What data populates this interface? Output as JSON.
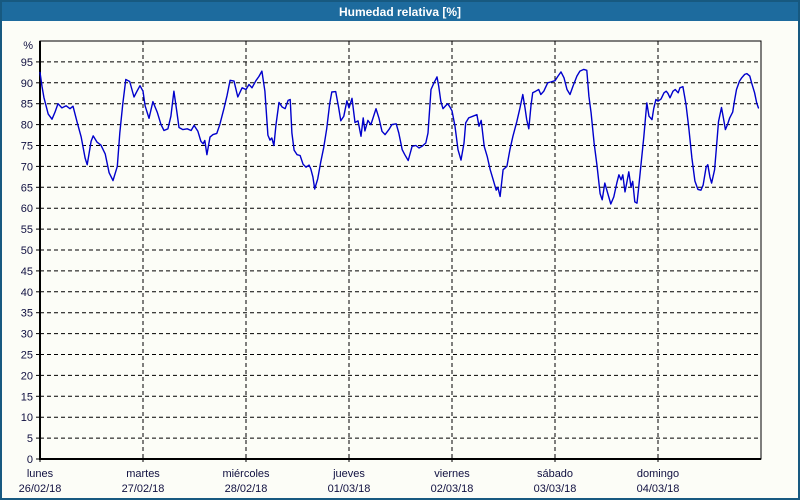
{
  "header": {
    "title": "Humedad relativa [%]"
  },
  "colors": {
    "titlebar_bg": "#1d6b9e",
    "title_text": "#ffffff",
    "window_border": "#175980",
    "background": "#fcfdf7",
    "axis": "#000000",
    "grid": "#000000",
    "label": "#101040",
    "line": "#0000cc"
  },
  "chart_data": {
    "type": "line",
    "title": "Humedad relativa [%]",
    "xlabel": "",
    "ylabel": "Humedad relativa",
    "y_unit_label": "%",
    "ylim": [
      0,
      100
    ],
    "xlim_hours": [
      0,
      168
    ],
    "grid": "horizontal dashed every 5%, vertical dashed at day boundaries",
    "legend": "none",
    "yticks": [
      0,
      5,
      10,
      15,
      20,
      25,
      30,
      35,
      40,
      45,
      50,
      55,
      60,
      65,
      70,
      75,
      80,
      85,
      90,
      95
    ],
    "ytick_labels": [
      "0",
      "5",
      "10",
      "15",
      "20",
      "25",
      "30",
      "35",
      "40",
      "45",
      "50",
      "55",
      "60",
      "65",
      "70",
      "75",
      "80",
      "85",
      "90",
      "95"
    ],
    "days": [
      {
        "name": "lunes",
        "date": "26/02/18"
      },
      {
        "name": "martes",
        "date": "27/02/18"
      },
      {
        "name": "miércoles",
        "date": "28/02/18"
      },
      {
        "name": "jueves",
        "date": "01/03/18"
      },
      {
        "name": "viernes",
        "date": "02/03/18"
      },
      {
        "name": "sábado",
        "date": "03/03/18"
      },
      {
        "name": "domingo",
        "date": "04/03/18"
      }
    ],
    "hours_per_day": 24,
    "series": [
      {
        "name": "Humedad relativa",
        "unit": "%",
        "points": [
          [
            0,
            92.5
          ],
          [
            0.5,
            89
          ],
          [
            0.9,
            86.5
          ],
          [
            1.9,
            82.5
          ],
          [
            2.8,
            81.3
          ],
          [
            3.5,
            83
          ],
          [
            4.2,
            85
          ],
          [
            5.1,
            84
          ],
          [
            6.1,
            84.5
          ],
          [
            7,
            83.8
          ],
          [
            7.7,
            84.4
          ],
          [
            8.6,
            80.8
          ],
          [
            9.6,
            77
          ],
          [
            10.5,
            72
          ],
          [
            11,
            70.4
          ],
          [
            11.9,
            76
          ],
          [
            12.4,
            77.3
          ],
          [
            13.3,
            75.8
          ],
          [
            14.2,
            75.1
          ],
          [
            15.2,
            73
          ],
          [
            16.1,
            68.5
          ],
          [
            17,
            66.6
          ],
          [
            18,
            70
          ],
          [
            18.6,
            78
          ],
          [
            19.3,
            85
          ],
          [
            20,
            90.8
          ],
          [
            20.9,
            90.3
          ],
          [
            21.9,
            86.6
          ],
          [
            22.6,
            88
          ],
          [
            23.3,
            89.3
          ],
          [
            24,
            88
          ],
          [
            24.5,
            84.5
          ],
          [
            25.4,
            81.5
          ],
          [
            26.3,
            85.5
          ],
          [
            27.3,
            83
          ],
          [
            28.2,
            80
          ],
          [
            28.9,
            78.6
          ],
          [
            29.8,
            79
          ],
          [
            30.5,
            82
          ],
          [
            31.2,
            88
          ],
          [
            31.9,
            83
          ],
          [
            32.4,
            79.3
          ],
          [
            33.3,
            78.8
          ],
          [
            34.3,
            79
          ],
          [
            35.2,
            78.6
          ],
          [
            35.9,
            79.8
          ],
          [
            36.8,
            78.4
          ],
          [
            37.5,
            76
          ],
          [
            38,
            75.4
          ],
          [
            38.4,
            76.2
          ],
          [
            38.9,
            72.8
          ],
          [
            39.6,
            77
          ],
          [
            40.3,
            77.6
          ],
          [
            41.2,
            77.9
          ],
          [
            41.9,
            80
          ],
          [
            42.9,
            84
          ],
          [
            43.6,
            87
          ],
          [
            44.3,
            90.6
          ],
          [
            45.2,
            90.4
          ],
          [
            46.1,
            86.6
          ],
          [
            47.1,
            88.8
          ],
          [
            48,
            88.4
          ],
          [
            48.7,
            89.6
          ],
          [
            49.4,
            88.8
          ],
          [
            50.3,
            90.5
          ],
          [
            51,
            91.5
          ],
          [
            51.7,
            92.8
          ],
          [
            52.4,
            88
          ],
          [
            53.1,
            77.5
          ],
          [
            53.6,
            76.3
          ],
          [
            54,
            76.8
          ],
          [
            54.5,
            75
          ],
          [
            55,
            80
          ],
          [
            55.7,
            85.3
          ],
          [
            56.4,
            84.2
          ],
          [
            57.1,
            83.8
          ],
          [
            57.8,
            85.8
          ],
          [
            58.3,
            86
          ],
          [
            58.7,
            78
          ],
          [
            59.2,
            73.9
          ],
          [
            59.9,
            72.8
          ],
          [
            60.6,
            72.6
          ],
          [
            61.3,
            70.5
          ],
          [
            62,
            69.8
          ],
          [
            62.7,
            70.3
          ],
          [
            63.1,
            69.4
          ],
          [
            63.6,
            67.5
          ],
          [
            64,
            64.6
          ],
          [
            64.7,
            67
          ],
          [
            65.4,
            71
          ],
          [
            66.1,
            74.5
          ],
          [
            66.8,
            79
          ],
          [
            67.5,
            85
          ],
          [
            68,
            87.8
          ],
          [
            68.9,
            87.9
          ],
          [
            69.6,
            84
          ],
          [
            70.1,
            80.9
          ],
          [
            70.8,
            82
          ],
          [
            71.5,
            85.7
          ],
          [
            72,
            84
          ],
          [
            72.7,
            86.3
          ],
          [
            73.4,
            80.5
          ],
          [
            74.1,
            80.9
          ],
          [
            74.8,
            77.2
          ],
          [
            75.3,
            81.6
          ],
          [
            75.7,
            78.5
          ],
          [
            76.4,
            81
          ],
          [
            77.1,
            80
          ],
          [
            78.3,
            83.8
          ],
          [
            79,
            81.5
          ],
          [
            79.7,
            78.4
          ],
          [
            80.4,
            77.6
          ],
          [
            81.3,
            78.8
          ],
          [
            82,
            80
          ],
          [
            83,
            80.2
          ],
          [
            83.6,
            78
          ],
          [
            84.4,
            74
          ],
          [
            85,
            72.8
          ],
          [
            85.8,
            71.4
          ],
          [
            86.7,
            74.8
          ],
          [
            87.6,
            75
          ],
          [
            88.3,
            74.4
          ],
          [
            89,
            74.8
          ],
          [
            89.9,
            75.6
          ],
          [
            90.4,
            78
          ],
          [
            91.1,
            88.4
          ],
          [
            91.8,
            90
          ],
          [
            92.5,
            91.4
          ],
          [
            92.9,
            89.2
          ],
          [
            93.4,
            85.6
          ],
          [
            93.9,
            83.8
          ],
          [
            94.6,
            84.6
          ],
          [
            95,
            85
          ],
          [
            95.5,
            84.2
          ],
          [
            96,
            83.3
          ],
          [
            96.7,
            79.6
          ],
          [
            97.4,
            74
          ],
          [
            98.1,
            71.5
          ],
          [
            98.8,
            75.6
          ],
          [
            99.2,
            80.4
          ],
          [
            99.9,
            81.6
          ],
          [
            100.9,
            82
          ],
          [
            101.8,
            82.4
          ],
          [
            102.3,
            79.6
          ],
          [
            102.8,
            81
          ],
          [
            103.5,
            74.8
          ],
          [
            104.2,
            72.4
          ],
          [
            104.9,
            69.2
          ],
          [
            105.6,
            66.8
          ],
          [
            106.3,
            64.3
          ],
          [
            106.7,
            65
          ],
          [
            107.2,
            62.8
          ],
          [
            107.9,
            69.2
          ],
          [
            108.8,
            70
          ],
          [
            109.5,
            74
          ],
          [
            110.2,
            77.2
          ],
          [
            111.1,
            80.7
          ],
          [
            111.8,
            83.8
          ],
          [
            112.5,
            87.2
          ],
          [
            113,
            84
          ],
          [
            113.4,
            81.2
          ],
          [
            113.9,
            79
          ],
          [
            114.4,
            84.6
          ],
          [
            114.8,
            87.6
          ],
          [
            115.5,
            88
          ],
          [
            116.2,
            88.4
          ],
          [
            116.7,
            87.2
          ],
          [
            117.4,
            88
          ],
          [
            118.3,
            90
          ],
          [
            119,
            90.2
          ],
          [
            120,
            90.5
          ],
          [
            120.7,
            91.6
          ],
          [
            121.4,
            92.6
          ],
          [
            122.1,
            91.2
          ],
          [
            122.8,
            88.4
          ],
          [
            123.5,
            87.2
          ],
          [
            124.2,
            89.2
          ],
          [
            125.1,
            91.6
          ],
          [
            125.8,
            92.8
          ],
          [
            126.7,
            93.2
          ],
          [
            127.4,
            93
          ],
          [
            127.9,
            86.8
          ],
          [
            128.4,
            82.8
          ],
          [
            129.1,
            75.6
          ],
          [
            129.8,
            70
          ],
          [
            130.5,
            63.5
          ],
          [
            131,
            62
          ],
          [
            131.6,
            66
          ],
          [
            132.3,
            63.5
          ],
          [
            133,
            61
          ],
          [
            133.7,
            62.7
          ],
          [
            134.4,
            66
          ],
          [
            134.9,
            68
          ],
          [
            135.4,
            66.8
          ],
          [
            135.8,
            68
          ],
          [
            136.3,
            63.9
          ],
          [
            136.7,
            66
          ],
          [
            137.2,
            68.7
          ],
          [
            137.7,
            65.1
          ],
          [
            138.1,
            66.4
          ],
          [
            138.6,
            61.5
          ],
          [
            139.1,
            61.2
          ],
          [
            139.5,
            65
          ],
          [
            140,
            70
          ],
          [
            140.7,
            77
          ],
          [
            141.4,
            85.2
          ],
          [
            141.9,
            82
          ],
          [
            142.6,
            81.2
          ],
          [
            143,
            83.8
          ],
          [
            143.5,
            86
          ],
          [
            144,
            85.6
          ],
          [
            144.7,
            86.1
          ],
          [
            145.4,
            87.6
          ],
          [
            145.9,
            88
          ],
          [
            146.3,
            87.5
          ],
          [
            146.8,
            86.4
          ],
          [
            147.5,
            88
          ],
          [
            148,
            88.4
          ],
          [
            148.7,
            87.6
          ],
          [
            149.1,
            88.8
          ],
          [
            149.8,
            89.1
          ],
          [
            150.5,
            85
          ],
          [
            151.2,
            79
          ],
          [
            151.9,
            72
          ],
          [
            152.6,
            66.5
          ],
          [
            153.3,
            64.5
          ],
          [
            154,
            64.3
          ],
          [
            154.5,
            65.5
          ],
          [
            155.2,
            69.8
          ],
          [
            155.6,
            70.4
          ],
          [
            156.1,
            67.5
          ],
          [
            156.5,
            66
          ],
          [
            157.2,
            69.2
          ],
          [
            157.7,
            75.6
          ],
          [
            158.1,
            80.7
          ],
          [
            158.8,
            84.1
          ],
          [
            159.3,
            81.2
          ],
          [
            159.7,
            78.8
          ],
          [
            160.2,
            80
          ],
          [
            160.7,
            81.6
          ],
          [
            161.4,
            83
          ],
          [
            161.8,
            85.6
          ],
          [
            162.3,
            88.4
          ],
          [
            163,
            90.4
          ],
          [
            163.5,
            91.2
          ],
          [
            164.2,
            92
          ],
          [
            164.7,
            92.2
          ],
          [
            165.4,
            91.6
          ],
          [
            165.8,
            90
          ],
          [
            166.5,
            87.6
          ],
          [
            167,
            85.2
          ],
          [
            167.4,
            84
          ]
        ]
      }
    ]
  }
}
